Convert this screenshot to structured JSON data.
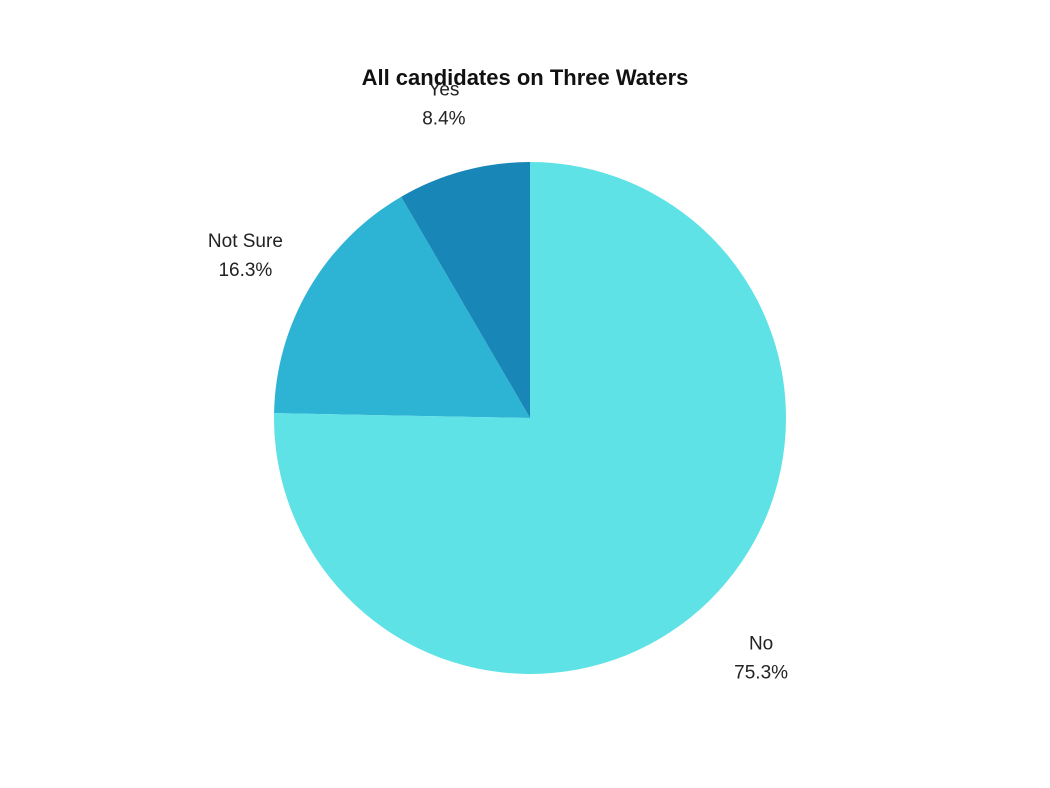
{
  "chart_data": {
    "type": "pie",
    "title": "All candidates on Three Waters",
    "slices": [
      {
        "label": "Yes",
        "value": 8.4,
        "value_label": "8.4%",
        "color": "#1887b8"
      },
      {
        "label": "Not Sure",
        "value": 16.3,
        "value_label": "16.3%",
        "color": "#2db3d4"
      },
      {
        "label": "No",
        "value": 75.3,
        "value_label": "75.3%",
        "color": "#5ee2e6"
      }
    ],
    "start": "12 o'clock",
    "direction": "counterclockwise",
    "legend": "none",
    "labels": "outside"
  }
}
